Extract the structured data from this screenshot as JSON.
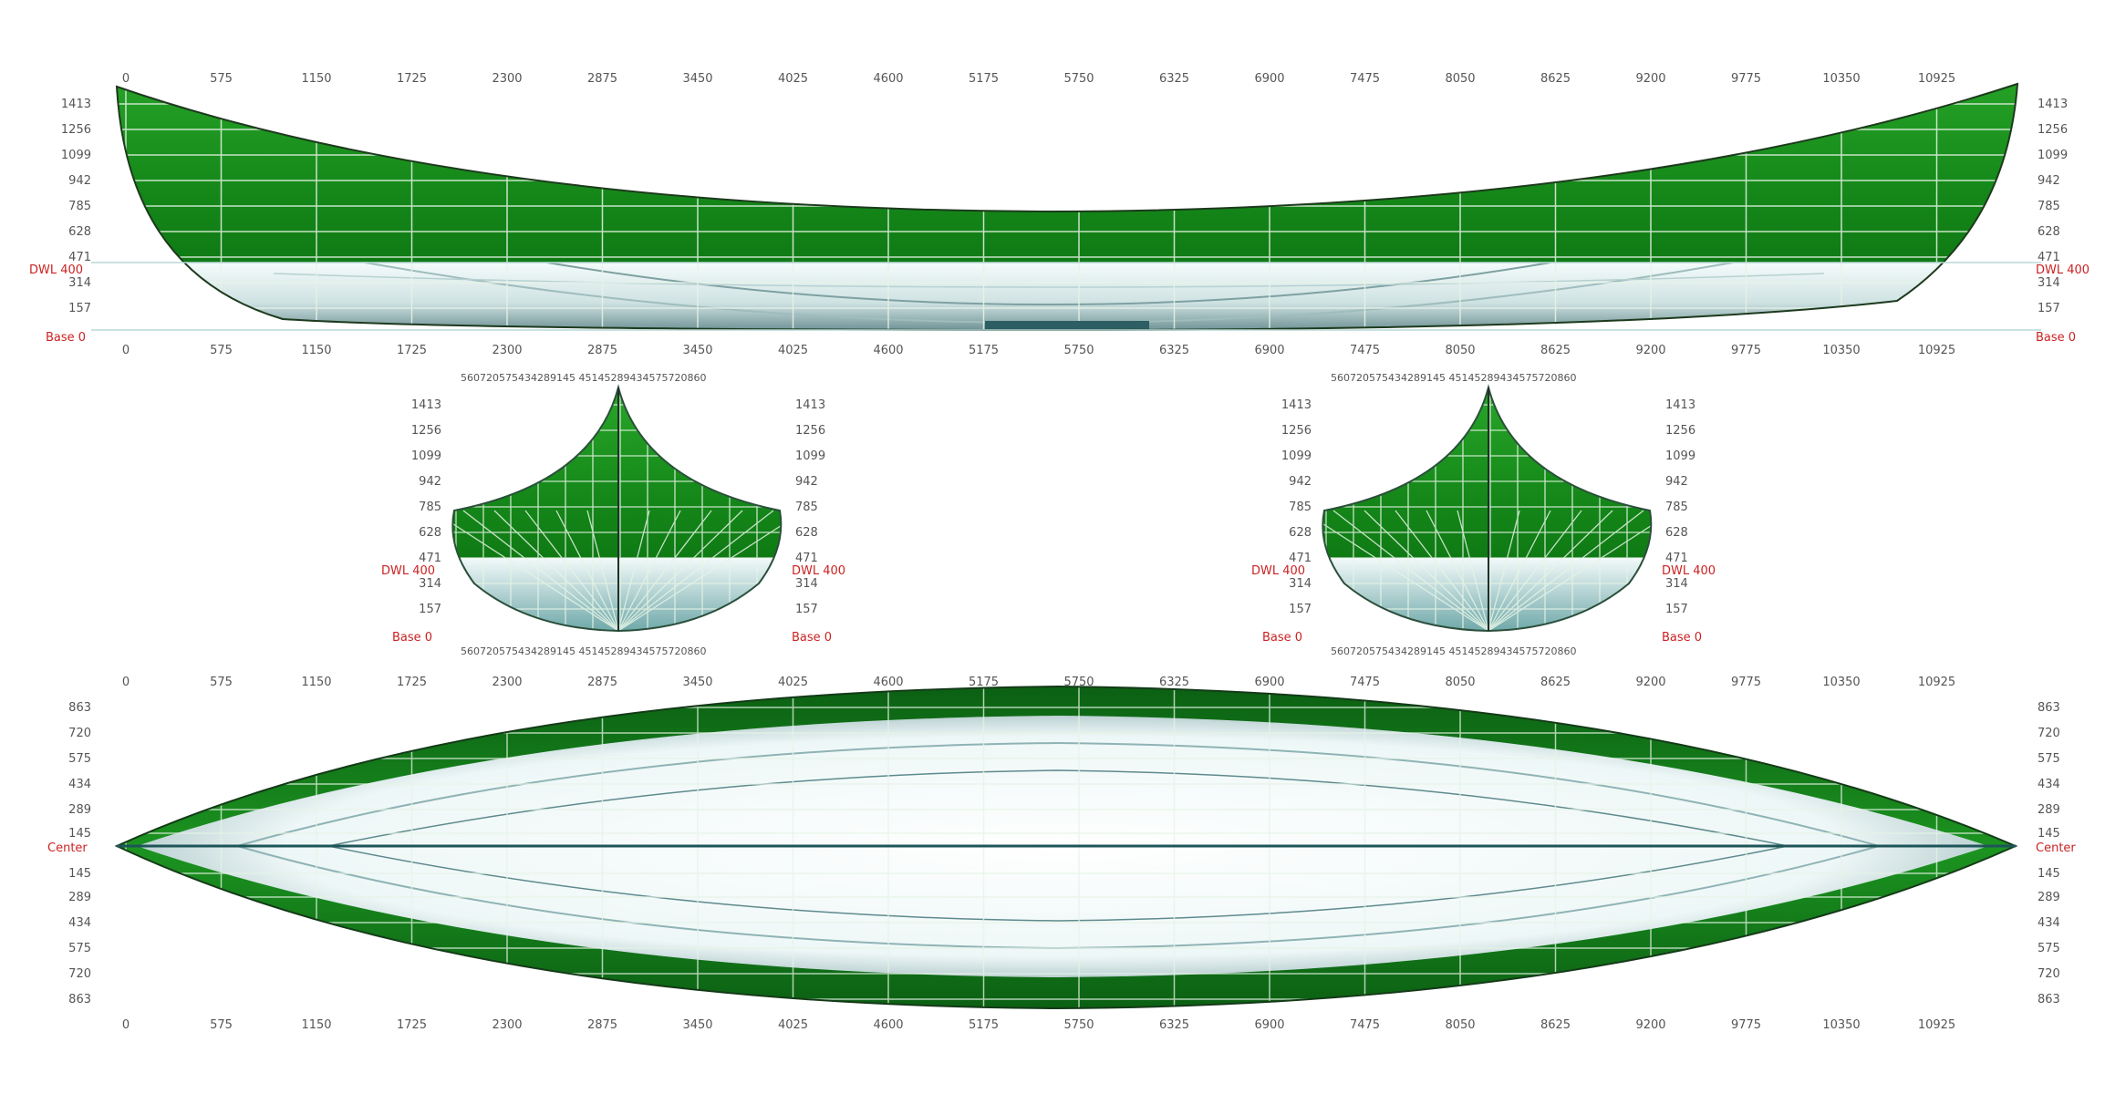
{
  "length_ticks": [
    "0",
    "575",
    "1150",
    "1725",
    "2300",
    "2875",
    "3450",
    "4025",
    "4600",
    "5175",
    "5750",
    "6325",
    "6900",
    "7475",
    "8050",
    "8625",
    "9200",
    "9775",
    "10350",
    "10925"
  ],
  "height_ticks": [
    "1413",
    "1256",
    "1099",
    "942",
    "785",
    "628",
    "471",
    "314",
    "157"
  ],
  "beam_ticks": [
    "863",
    "720",
    "575",
    "434",
    "289",
    "145",
    "145",
    "289",
    "434",
    "575",
    "720",
    "863"
  ],
  "section_ticks": "560720575434289145 45145289434575720860",
  "labels": {
    "dwl_left": "DWL 400",
    "dwl_right": "DWL 400",
    "base_left": "Base 0",
    "base_right": "Base 0",
    "center_left": "Center",
    "center_right": "Center"
  },
  "colors": {
    "hull_green": "#1f9a1f",
    "hull_dark": "#0c6a14",
    "underwater": "#eaf6f6",
    "keel": "#2c5e63",
    "grid": "#ffffff"
  }
}
